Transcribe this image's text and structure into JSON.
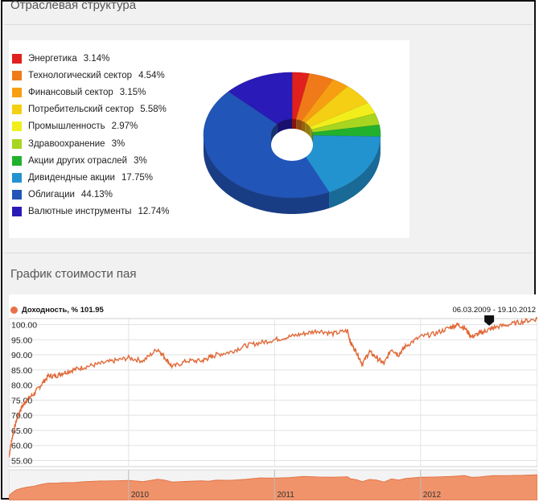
{
  "section1": {
    "title": "Отраслевая структура"
  },
  "section2": {
    "title": "График стоимости пая"
  },
  "chart_data": [
    {
      "type": "pie",
      "donut": true,
      "categories": [
        "Энергетика",
        "Технологический сектор",
        "Финансовый сектор",
        "Потребительский сектор",
        "Промышленность",
        "Здравоохранение",
        "Акции других отраслей",
        "Дивидендные акции",
        "Облигации",
        "Валютные инструменты"
      ],
      "values": [
        3.14,
        4.54,
        3.15,
        5.58,
        2.97,
        3,
        3,
        17.75,
        44.13,
        12.74
      ],
      "value_labels": [
        "3.14%",
        "4.54%",
        "3.15%",
        "5.58%",
        "2.97%",
        "3%",
        "3%",
        "17.75%",
        "44.13%",
        "12.74%"
      ],
      "colors": [
        "#e0201c",
        "#f07a1a",
        "#f79f12",
        "#f5cf14",
        "#f2ee1c",
        "#a8d51f",
        "#21b12d",
        "#2393d0",
        "#2255b8",
        "#2a1bb8"
      ],
      "legend_position": "left"
    },
    {
      "type": "line",
      "series_label": "Доходность, %",
      "current_value": "101.95",
      "date_range": "06.03.2009 - 19.10.2012",
      "yticks": [
        "100.00",
        "95.00",
        "90.00",
        "85.00",
        "80.00",
        "75.00",
        "70.00",
        "65.00",
        "60.00",
        "55.00"
      ],
      "ylim": [
        53,
        102
      ],
      "xlim": [
        2009.18,
        2012.8
      ],
      "grid": true,
      "line_color": "#e06a3a",
      "series": [
        {
          "x": [
            2009.18,
            2009.2,
            2009.23,
            2009.26,
            2009.3,
            2009.35,
            2009.4,
            2009.45,
            2009.5,
            2009.55,
            2009.62,
            2009.7,
            2009.8,
            2009.9,
            2010.0,
            2010.1,
            2010.2,
            2010.25,
            2010.3,
            2010.4,
            2010.5,
            2010.55,
            2010.6,
            2010.7,
            2010.8,
            2010.9,
            2011.0,
            2011.1,
            2011.2,
            2011.3,
            2011.4,
            2011.5,
            2011.52,
            2011.56,
            2011.6,
            2011.65,
            2011.7,
            2011.75,
            2011.8,
            2011.85,
            2011.9,
            2012.0,
            2012.1,
            2012.2,
            2012.25,
            2012.3,
            2012.35,
            2012.4,
            2012.45,
            2012.5,
            2012.6,
            2012.7,
            2012.8
          ],
          "y": [
            56,
            62,
            68,
            72,
            75,
            77,
            80,
            83,
            83,
            84,
            85,
            86,
            87,
            88,
            89,
            88,
            92,
            89,
            86,
            88,
            88,
            89,
            90,
            91,
            93,
            94,
            95,
            96,
            97,
            98,
            97,
            98,
            94,
            91,
            87,
            91,
            89,
            87,
            92,
            90,
            93,
            96,
            97,
            99,
            100,
            99,
            96,
            97,
            98,
            99,
            100,
            101,
            101.95
          ]
        }
      ],
      "navigator": {
        "xticks": [
          "2010",
          "2011",
          "2012"
        ],
        "color": "#f0936a"
      }
    }
  ]
}
